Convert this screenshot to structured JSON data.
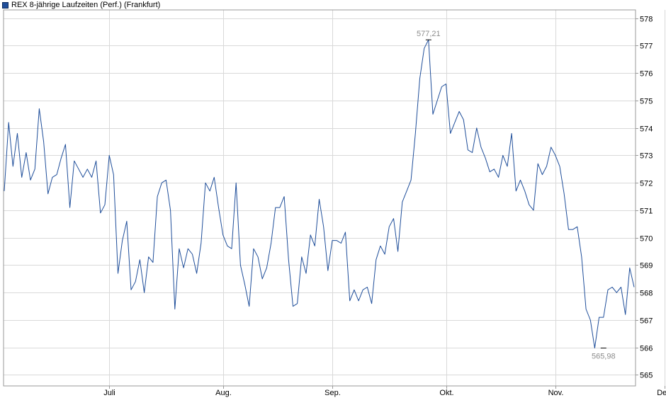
{
  "legend": {
    "label": "REX 8-jährige Laufzeiten (Perf.) (Frankfurt)",
    "color": "#1f4e9a"
  },
  "chart_data": {
    "type": "line",
    "title": "",
    "xlabel": "",
    "ylabel": "",
    "ylim": [
      564.6,
      578.3
    ],
    "yticks": [
      565,
      566,
      567,
      568,
      569,
      570,
      571,
      572,
      573,
      574,
      575,
      576,
      577,
      578
    ],
    "ytick_labels": [
      "565",
      "566",
      "567",
      "568",
      "569",
      "570",
      "571",
      "572",
      "573",
      "574",
      "575",
      "576",
      "577",
      "578"
    ],
    "grid": true,
    "legend_position": "top-left",
    "x_tick_labels": [
      "Juli",
      "Aug.",
      "Sep.",
      "Okt.",
      "Nov.",
      "Dez."
    ],
    "x_tick_index": [
      24,
      50,
      75,
      101,
      126,
      151
    ],
    "series": [
      {
        "name": "REX 8-jährige Laufzeiten (Perf.) (Frankfurt)",
        "color": "#1f4e9a",
        "values": [
          571.7,
          574.2,
          572.6,
          573.8,
          572.2,
          573.1,
          572.1,
          572.5,
          574.7,
          573.5,
          571.6,
          572.2,
          572.3,
          572.9,
          573.4,
          571.1,
          572.8,
          572.5,
          572.2,
          572.5,
          572.2,
          572.8,
          570.9,
          571.2,
          573.0,
          572.3,
          568.7,
          569.9,
          570.6,
          568.1,
          568.4,
          569.2,
          568.0,
          569.3,
          569.1,
          571.5,
          572.0,
          572.1,
          571.0,
          567.4,
          569.6,
          568.9,
          569.6,
          569.4,
          568.7,
          569.8,
          572.0,
          571.7,
          572.2,
          571.1,
          570.1,
          569.7,
          569.6,
          572.0,
          569.0,
          568.3,
          567.5,
          569.6,
          569.3,
          568.5,
          568.9,
          569.8,
          571.1,
          571.1,
          571.5,
          569.2,
          567.5,
          567.6,
          569.3,
          568.7,
          570.1,
          569.7,
          571.4,
          570.4,
          568.8,
          569.9,
          569.9,
          569.8,
          570.2,
          567.7,
          568.1,
          567.7,
          568.1,
          568.2,
          567.6,
          569.2,
          569.7,
          569.4,
          570.4,
          570.7,
          569.5,
          571.3,
          571.7,
          572.1,
          573.8,
          575.8,
          576.9,
          577.21,
          574.5,
          575.0,
          575.5,
          575.6,
          573.8,
          574.2,
          574.6,
          574.3,
          573.2,
          573.1,
          574.0,
          573.3,
          572.9,
          572.4,
          572.5,
          572.2,
          573.0,
          572.6,
          573.8,
          571.7,
          572.1,
          571.7,
          571.2,
          571.0,
          572.7,
          572.3,
          572.6,
          573.3,
          573.0,
          572.6,
          571.6,
          570.3,
          570.3,
          570.4,
          569.3,
          567.4,
          567.0,
          565.98,
          567.1,
          567.1,
          568.1,
          568.2,
          568.0,
          568.2,
          567.2,
          568.9,
          568.2
        ]
      }
    ],
    "annotations": [
      {
        "label": "577,21",
        "index": 97,
        "value": 577.21,
        "position": "above"
      },
      {
        "label": "565,98",
        "index": 137,
        "value": 565.98,
        "position": "below"
      }
    ]
  }
}
